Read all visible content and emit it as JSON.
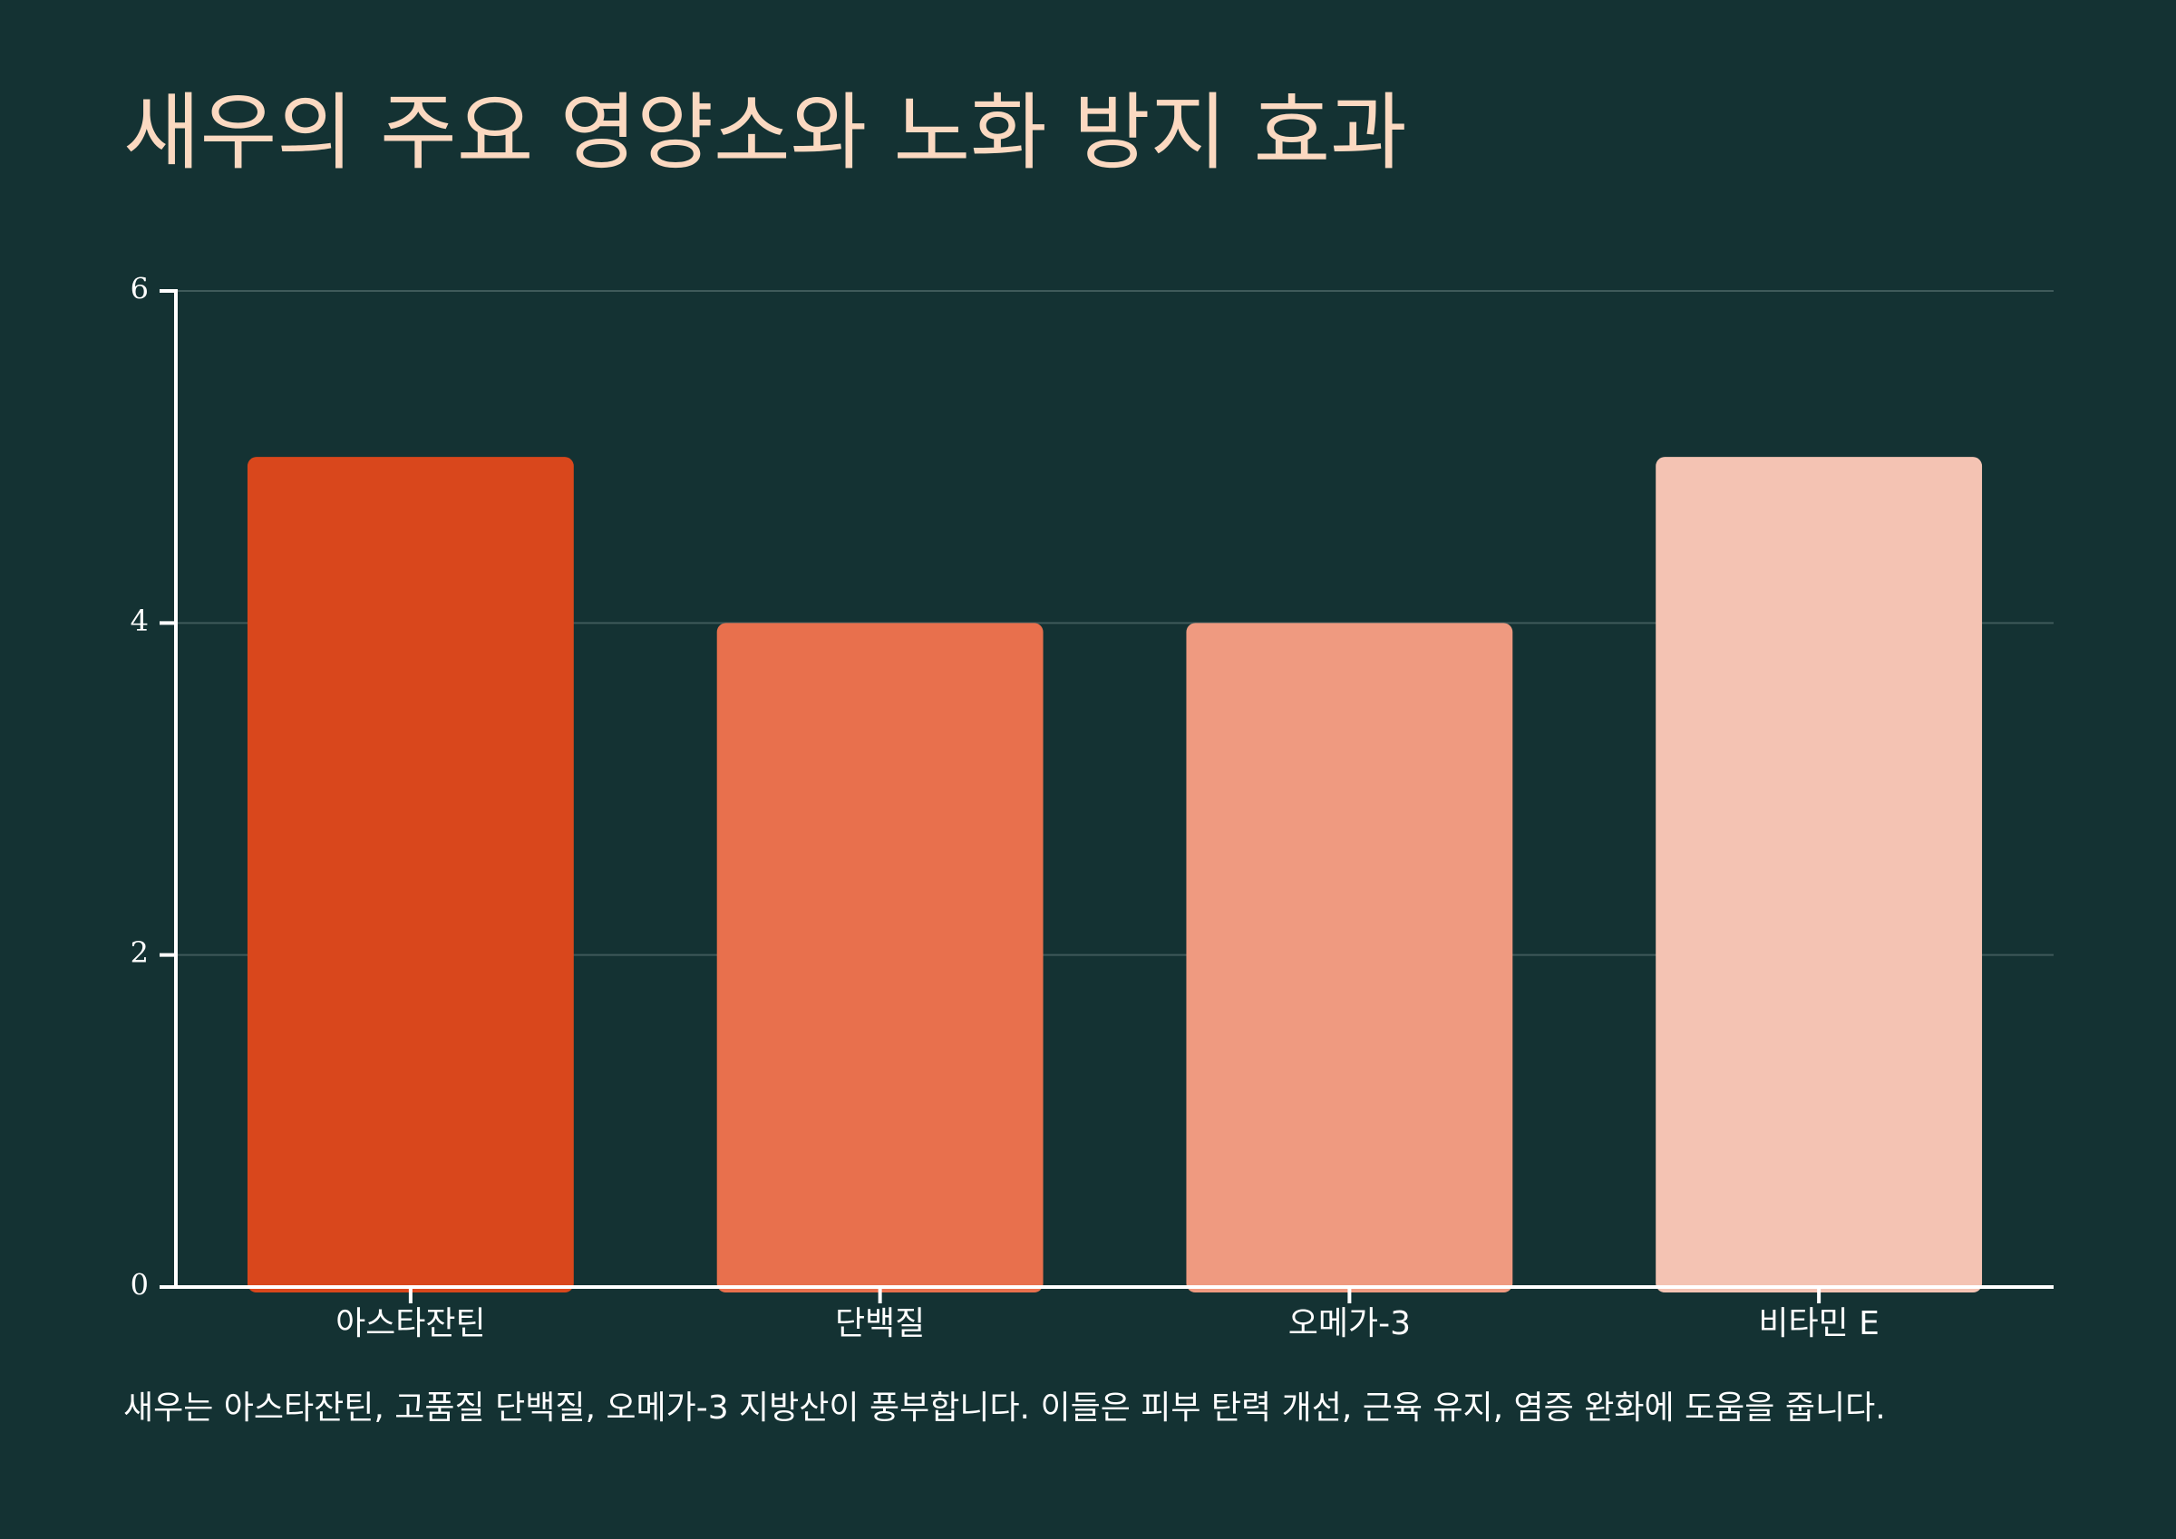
{
  "title": "새우의 주요 영양소와 노화 방지 효과",
  "caption": "새우는 아스타잔틴, 고품질 단백질, 오메가-3 지방산이 풍부합니다. 이들은 피부 탄력 개선, 근육 유지, 염증 완화에 도움을 줍니다.",
  "colors": {
    "background": "#143233",
    "title": "#fbd9c1",
    "axis": "#ffffff",
    "grid": "#3f5a5a"
  },
  "chart_data": {
    "type": "bar",
    "categories": [
      "아스타잔틴",
      "단백질",
      "오메가-3",
      "비타민 E"
    ],
    "values": [
      5,
      4,
      4,
      5
    ],
    "bar_colors": [
      "#d9471c",
      "#e8704d",
      "#ef9a80",
      "#f4c3b3"
    ],
    "ylim": [
      0,
      6
    ],
    "yticks": [
      0,
      2,
      4,
      6
    ],
    "grid": true,
    "legend": false,
    "xlabel": "",
    "ylabel": ""
  }
}
